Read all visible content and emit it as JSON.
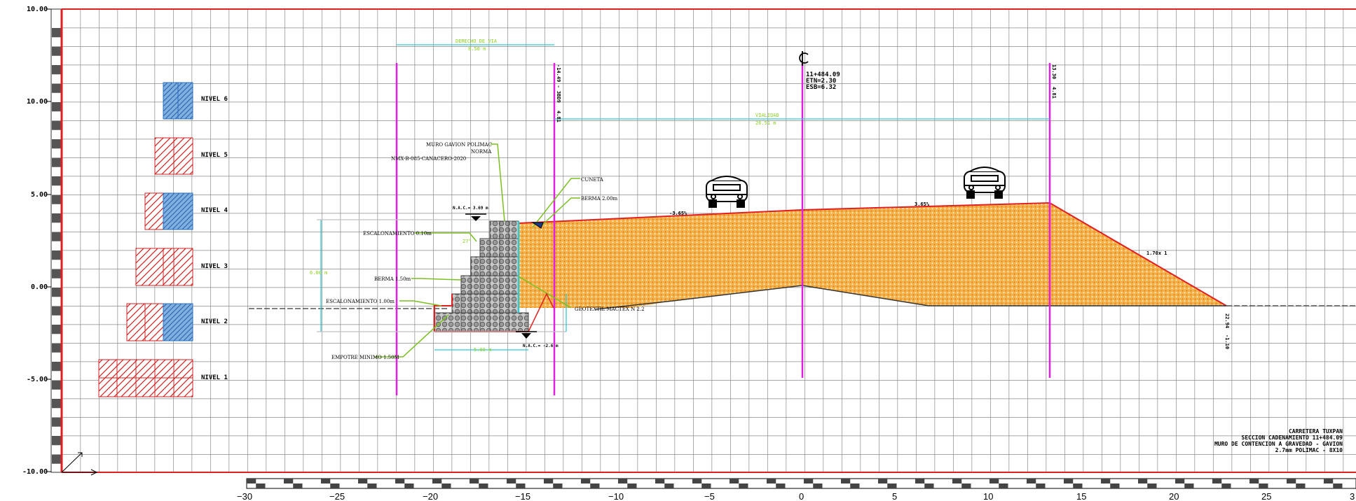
{
  "axis": {
    "y_ticks": [
      "10.00",
      "10.00",
      "5.00",
      "0.00",
      "-5.00",
      "-10.00"
    ],
    "x_ticks": [
      "−30",
      "−25",
      "−20",
      "−15",
      "−10",
      "−5",
      "0",
      "5",
      "10",
      "15",
      "20",
      "25",
      "3"
    ]
  },
  "levels": [
    {
      "label": "NIVEL 6"
    },
    {
      "label": "NIVEL 5"
    },
    {
      "label": "NIVEL 4"
    },
    {
      "label": "NIVEL 3"
    },
    {
      "label": "NIVEL 2"
    },
    {
      "label": "NIVEL 1"
    }
  ],
  "annotations": {
    "derecho_via": "DERECHO DE VIA",
    "derecho_via_value": "8.50 m",
    "vialidad": "VIALIDAD",
    "vialidad_value": "26.51 m",
    "muro_1": "MURO GAVION POLIMAC",
    "muro_2": "NORMA",
    "muro_3": "NMX-B-085-CANACERO-2020",
    "cuneta": "CUNETA",
    "berma_top": "BERMA 2.00m",
    "escalonamiento_top": "ESCALONAMIENTO 0.10m",
    "berma_mid": "BERMA 1.50m",
    "escalonamiento_bot": "ESCALONAMIENTO 1.00m",
    "empotre": "EMPOTRE MINIMO 1.50M",
    "geotextil": "GEOTEXTIL MACTEX N 2.2",
    "nac_top": "N.A.C.= 3.69 m",
    "nac_bot": "N.A.C.= -2.6 m",
    "height_dim": "6.00 m",
    "base_dim": "5.00 m",
    "slope_left": "-3.65%",
    "slope_right": "3.65%",
    "talud": "1.70x 1",
    "left_station": "-14.49 - 3BD9",
    "left_station_2": "4.81",
    "right_station": "13.30",
    "right_station_2": "4.81",
    "toe_station": "22.94",
    "toe_station_2": "-1.10",
    "cl_station": "11+484.09",
    "cl_etn": "ETN=2.30",
    "cl_esb": "ESB=6.32",
    "angle": "27°"
  },
  "title_block": {
    "line1": "CARRETERA  TUXPAN",
    "line2": "SECCION  CADENAMIENTO  11+484.09",
    "line3": "MURO DE CONTENCION A GRAVEDAD  -  GAVION",
    "line4": "2.7mm  POLIMAC  -  8X10"
  },
  "colors": {
    "border": "#e02020",
    "grid": "#8a8a8a",
    "fill": "#f0a030",
    "magenta": "#e020e0",
    "cyan": "#30c8d0",
    "green": "#8ad020",
    "blue_hatch": "#2a70c0",
    "red_hatch": "#d02020"
  }
}
